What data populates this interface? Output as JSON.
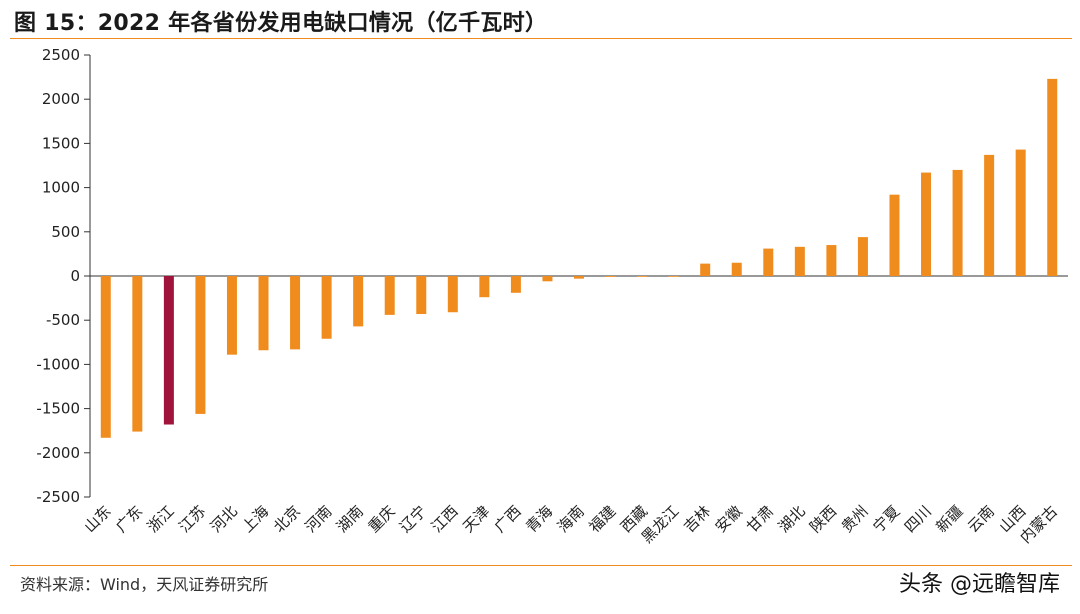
{
  "header": {
    "title": "图 15：2022 年各省份发用电缺口情况（亿千瓦时）"
  },
  "footer": {
    "source": "资料来源：Wind，天风证券研究所",
    "watermark": "头条 @远瞻智库"
  },
  "colors": {
    "accent": "#f08c1e",
    "bar": "#f08c1e",
    "highlight": "#a0143c",
    "rule": "#f08c1e"
  },
  "chart_data": {
    "type": "bar",
    "title": "",
    "xlabel": "",
    "ylabel": "",
    "ylim": [
      -2500,
      2500
    ],
    "yticks": [
      2500,
      2000,
      1500,
      1000,
      500,
      0,
      -500,
      -1000,
      -1500,
      -2000,
      -2500
    ],
    "ytick_labels": [
      "2500",
      "2000",
      "1500",
      "1000",
      "500",
      "0",
      "-500",
      "-1000",
      "-1500",
      "-2000",
      "-2500"
    ],
    "grid": false,
    "legend": "none",
    "highlight_category": "浙江",
    "categories": [
      "山东",
      "广东",
      "浙江",
      "江苏",
      "河北",
      "上海",
      "北京",
      "河南",
      "湖南",
      "重庆",
      "辽宁",
      "江西",
      "天津",
      "广西",
      "青海",
      "海南",
      "福建",
      "西藏",
      "黑龙江",
      "吉林",
      "安徽",
      "甘肃",
      "湖北",
      "陕西",
      "贵州",
      "宁夏",
      "四川",
      "新疆",
      "云南",
      "山西",
      "内蒙古"
    ],
    "values": [
      -1830,
      -1760,
      -1680,
      -1560,
      -890,
      -840,
      -830,
      -710,
      -570,
      -440,
      -430,
      -410,
      -240,
      -190,
      -60,
      -30,
      -10,
      -5,
      -3,
      140,
      150,
      310,
      330,
      350,
      440,
      920,
      1170,
      1200,
      1370,
      1430,
      2230
    ]
  }
}
